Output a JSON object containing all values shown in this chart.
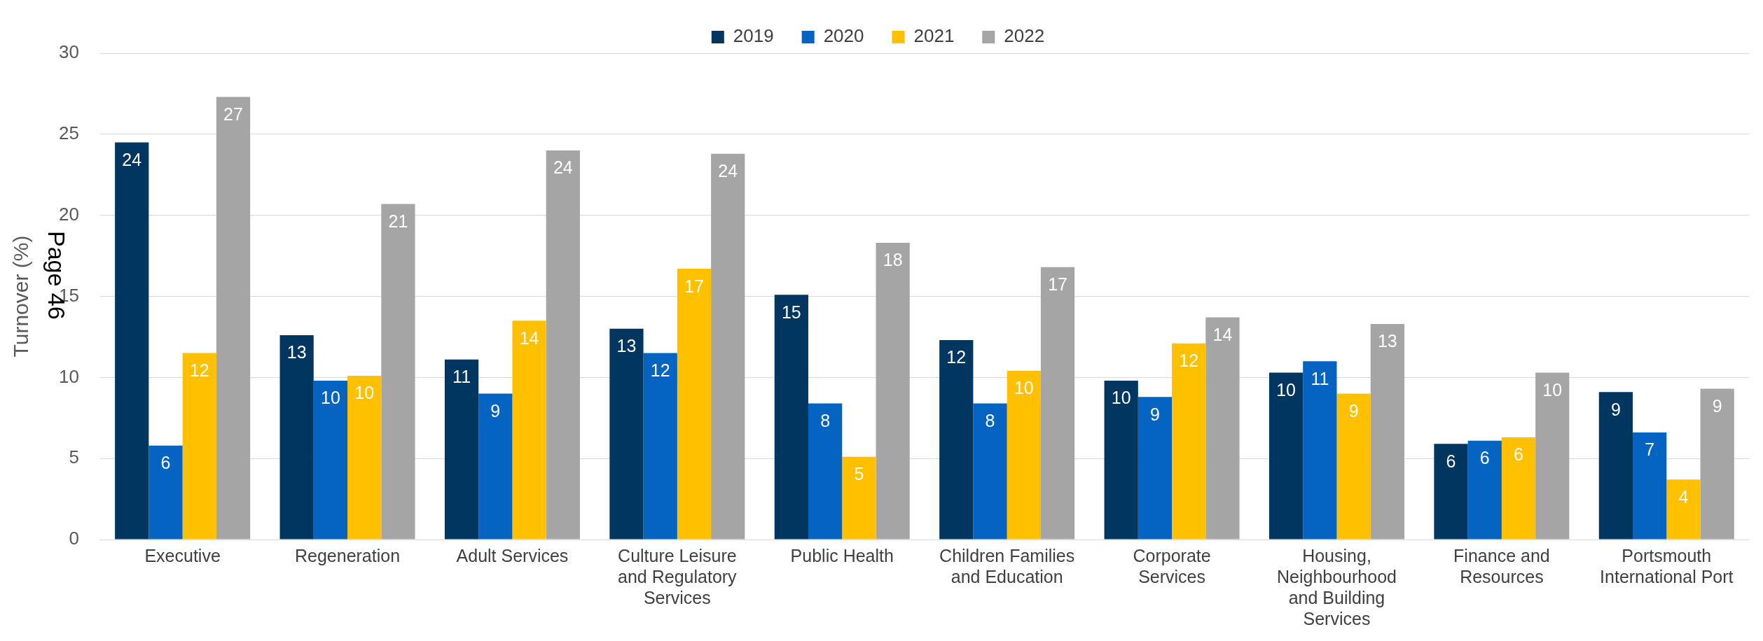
{
  "chart_data": {
    "type": "bar",
    "ylabel": "Turnover (%)",
    "categories": [
      "Executive",
      "Regeneration",
      "Adult Services",
      "Culture Leisure and Regulatory Services",
      "Public Health",
      "Children Families and Education",
      "Corporate Services",
      "Housing, Neighbourhood and Building Services",
      "Finance and Resources",
      "Portsmouth International Port"
    ],
    "series": [
      {
        "name": "2019",
        "color": "#003660",
        "values": [
          24.5,
          12.6,
          11.1,
          13.0,
          15.1,
          12.3,
          9.8,
          10.3,
          5.9,
          9.1
        ],
        "value_labels": [
          "24",
          "13",
          "11",
          "13",
          "15",
          "12",
          "10",
          "10",
          "6",
          "9"
        ]
      },
      {
        "name": "2020",
        "color": "#0563c1",
        "values": [
          5.8,
          9.8,
          9.0,
          11.5,
          8.4,
          8.4,
          8.8,
          11.0,
          6.1,
          6.6
        ],
        "value_labels": [
          "6",
          "10",
          "9",
          "12",
          "8",
          "8",
          "9",
          "11",
          "6",
          "7"
        ]
      },
      {
        "name": "2021",
        "color": "#ffc000",
        "values": [
          11.5,
          10.1,
          13.5,
          16.7,
          5.1,
          10.4,
          12.1,
          9.0,
          6.3,
          3.7
        ],
        "value_labels": [
          "12",
          "10",
          "14",
          "17",
          "5",
          "10",
          "12",
          "9",
          "6",
          "4"
        ]
      },
      {
        "name": "2022",
        "color": "#a5a5a5",
        "values": [
          27.3,
          20.7,
          24.0,
          23.8,
          18.3,
          16.8,
          13.7,
          13.3,
          10.3,
          9.3
        ],
        "value_labels": [
          "27",
          "21",
          "24",
          "24",
          "18",
          "17",
          "14",
          "13",
          "10",
          "9"
        ]
      }
    ],
    "ylim": [
      0,
      30
    ],
    "yticks": [
      0,
      5,
      10,
      15,
      20,
      25,
      30
    ],
    "grid": "y",
    "legend": "top",
    "annotations": [
      "Page 46"
    ]
  }
}
